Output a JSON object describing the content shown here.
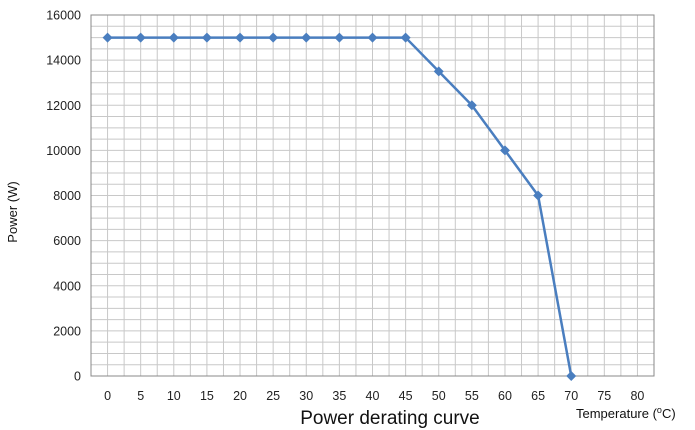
{
  "chart_data": {
    "type": "line",
    "title": "Power derating curve",
    "xlabel": "Temperature (",
    "xlabel_sup": "o",
    "xlabel_unit": "C)",
    "ylabel": "Power (W)",
    "categories": [
      "0",
      "5",
      "10",
      "15",
      "20",
      "25",
      "30",
      "35",
      "40",
      "45",
      "50",
      "55",
      "60",
      "65",
      "70",
      "75",
      "80"
    ],
    "ylim": [
      0,
      16000
    ],
    "yticks": [
      "0",
      "2000",
      "4000",
      "6000",
      "8000",
      "10000",
      "12000",
      "14000",
      "16000"
    ],
    "grid": true,
    "series": [
      {
        "values": [
          15000,
          15000,
          15000,
          15000,
          15000,
          15000,
          15000,
          15000,
          15000,
          15000,
          13500,
          12000,
          10000,
          8000,
          0,
          null,
          null
        ],
        "color": "#4a7ebf",
        "marker": "diamond"
      }
    ],
    "colors": {
      "grid": "#c8c8c8",
      "axis": "#888888"
    }
  }
}
